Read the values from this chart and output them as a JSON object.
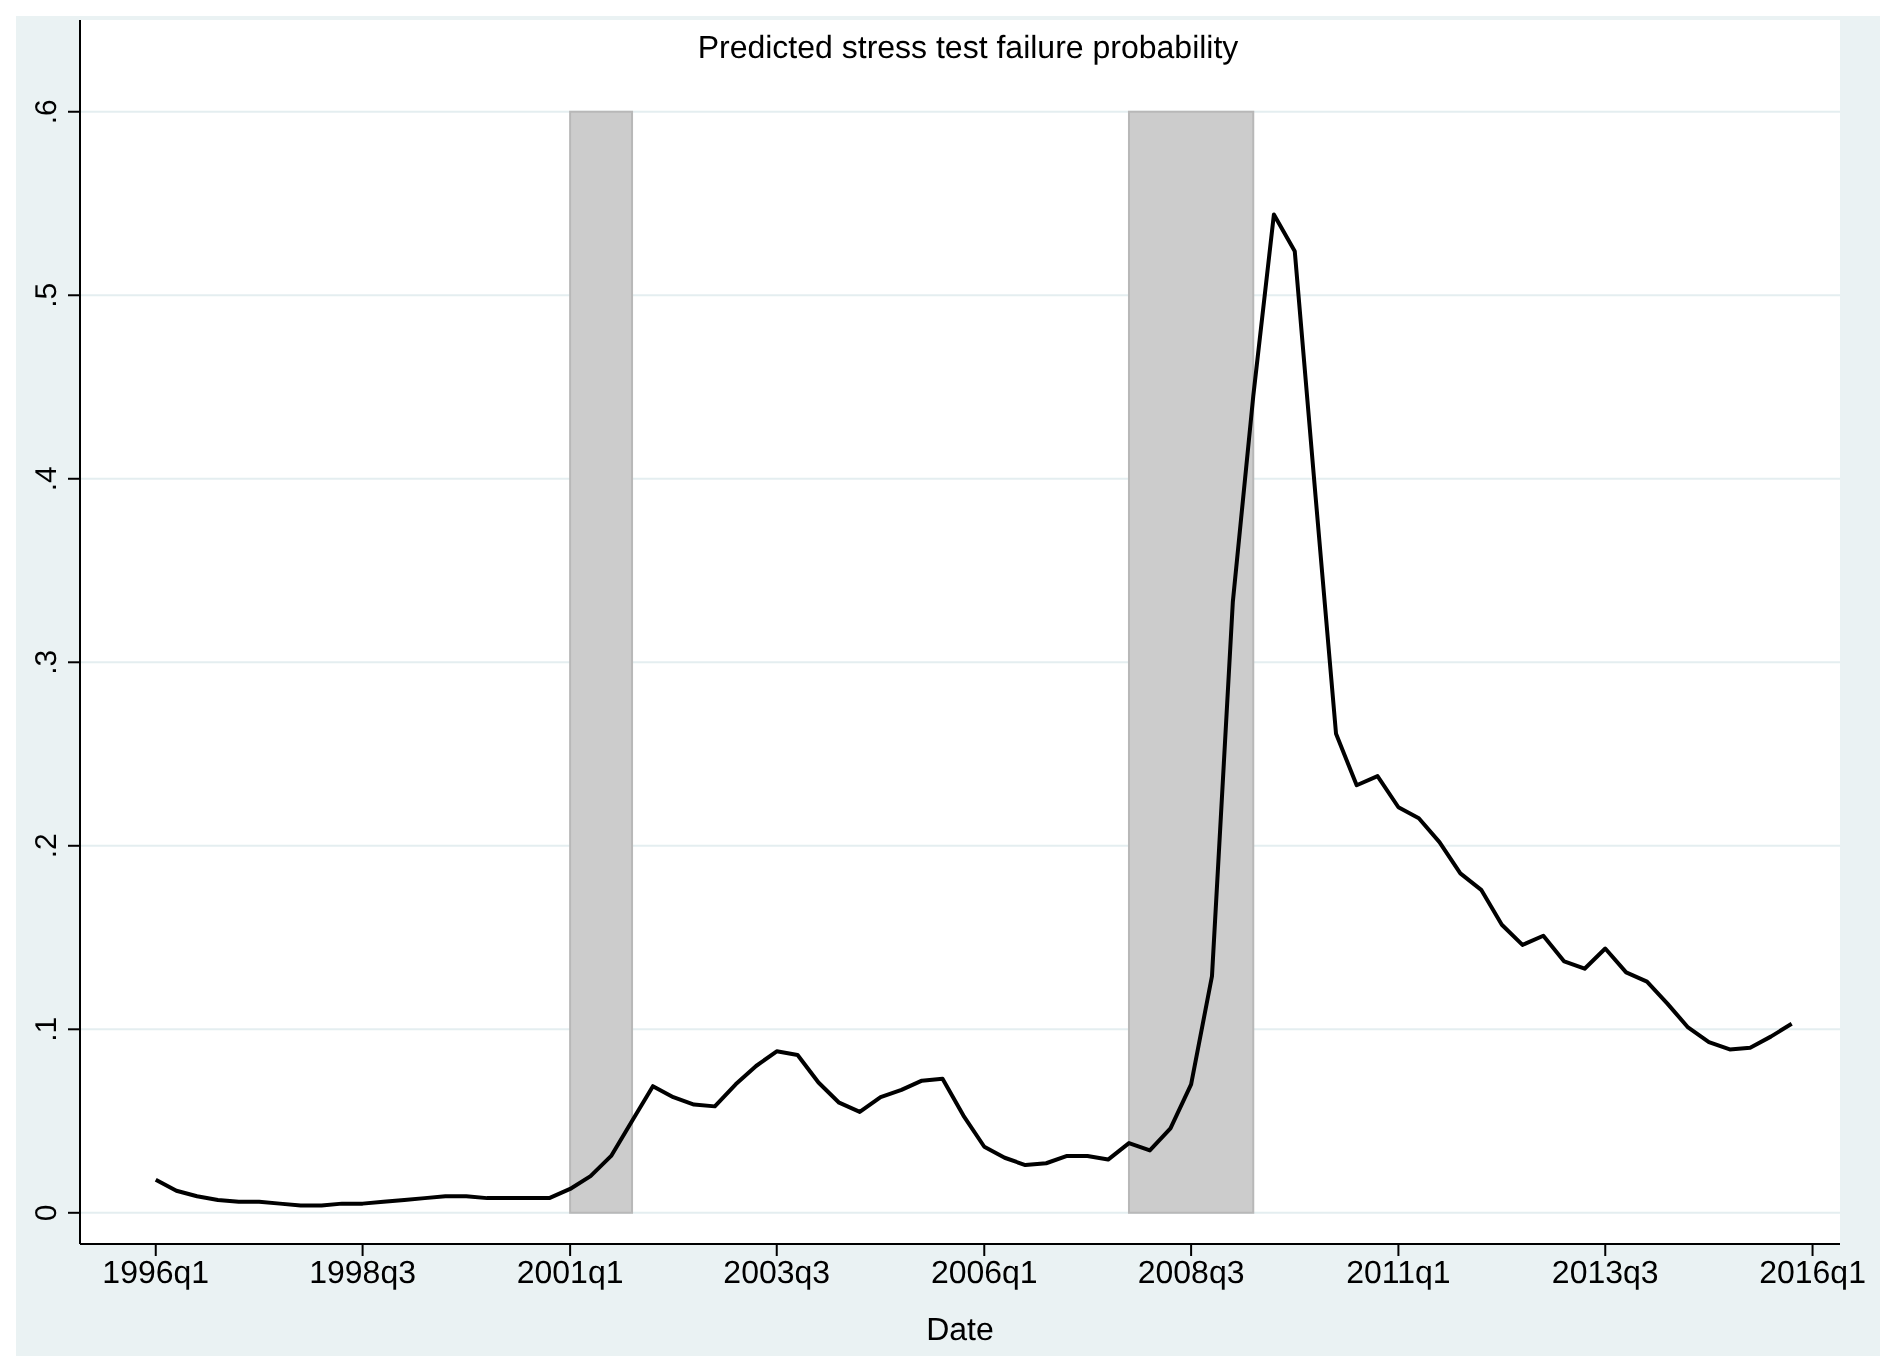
{
  "chart_data": {
    "type": "line",
    "title": "Predicted stress test failure probability",
    "xlabel": "Date",
    "x": [
      "1996-01",
      "1996-04",
      "1996-07",
      "1996-10",
      "1997-01",
      "1997-04",
      "1997-07",
      "1997-10",
      "1998-01",
      "1998-04",
      "1998-07",
      "1998-10",
      "1999-01",
      "1999-04",
      "1999-07",
      "1999-10",
      "2000-01",
      "2000-04",
      "2000-07",
      "2000-10",
      "2001-01",
      "2001-04",
      "2001-07",
      "2001-10",
      "2002-01",
      "2002-04",
      "2002-07",
      "2002-10",
      "2003-01",
      "2003-04",
      "2003-07",
      "2003-10",
      "2004-01",
      "2004-04",
      "2004-07",
      "2004-10",
      "2005-01",
      "2005-04",
      "2005-07",
      "2005-10",
      "2006-01",
      "2006-04",
      "2006-07",
      "2006-10",
      "2007-01",
      "2007-04",
      "2007-07",
      "2007-10",
      "2008-01",
      "2008-04",
      "2008-07",
      "2008-10",
      "2009-01",
      "2009-04",
      "2009-07",
      "2009-10",
      "2010-01",
      "2010-04",
      "2010-07",
      "2010-10",
      "2011-01",
      "2011-04",
      "2011-07",
      "2011-10",
      "2012-01",
      "2012-04",
      "2012-07",
      "2012-10",
      "2013-01",
      "2013-04",
      "2013-07",
      "2013-10",
      "2014-01",
      "2014-04",
      "2014-07",
      "2014-10",
      "2015-01",
      "2015-04",
      "2015-07",
      "2015-10"
    ],
    "series": [
      {
        "color": "#000000",
        "values": [
          0.018,
          0.012,
          0.009,
          0.007,
          0.006,
          0.006,
          0.005,
          0.004,
          0.004,
          0.005,
          0.005,
          0.006,
          0.007,
          0.008,
          0.009,
          0.009,
          0.008,
          0.008,
          0.008,
          0.008,
          0.013,
          0.02,
          0.031,
          0.05,
          0.069,
          0.063,
          0.059,
          0.058,
          0.07,
          0.08,
          0.088,
          0.086,
          0.071,
          0.06,
          0.055,
          0.063,
          0.067,
          0.072,
          0.073,
          0.053,
          0.036,
          0.03,
          0.026,
          0.027,
          0.031,
          0.031,
          0.029,
          0.038,
          0.034,
          0.046,
          0.07,
          0.129,
          0.333,
          0.445,
          0.544,
          0.524,
          0.39,
          0.261,
          0.233,
          0.238,
          0.221,
          0.215,
          0.202,
          0.185,
          0.176,
          0.157,
          0.146,
          0.151,
          0.137,
          0.133,
          0.144,
          0.131,
          0.126,
          0.114,
          0.101,
          0.093,
          0.089,
          0.09,
          0.096,
          0.103
        ]
      }
    ],
    "xlim": [
      "1995-02",
      "2016-05"
    ],
    "xticks": [
      {
        "value": "1996-01",
        "label": "1996q1"
      },
      {
        "value": "1998-07",
        "label": "1998q3"
      },
      {
        "value": "2001-01",
        "label": "2001q1"
      },
      {
        "value": "2003-07",
        "label": "2003q3"
      },
      {
        "value": "2006-01",
        "label": "2006q1"
      },
      {
        "value": "2008-07",
        "label": "2008q3"
      },
      {
        "value": "2011-01",
        "label": "2011q1"
      },
      {
        "value": "2013-07",
        "label": "2013q3"
      },
      {
        "value": "2016-01",
        "label": "2016q1"
      }
    ],
    "ylim": [
      -0.017,
      0.65
    ],
    "yticks": [
      0,
      {
        "value": 0.1,
        "label": ".1"
      },
      {
        "value": 0.2,
        "label": ".2"
      },
      {
        "value": 0.3,
        "label": ".3"
      },
      {
        "value": 0.4,
        "label": ".4"
      },
      {
        "value": 0.5,
        "label": ".5"
      },
      {
        "value": 0.6,
        "label": ".6"
      }
    ],
    "bands": [
      {
        "axis": "x",
        "from": "2001-01",
        "to": "2001-10",
        "color": "#cccccc"
      },
      {
        "axis": "x",
        "from": "2007-10",
        "to": "2009-04",
        "color": "#cccccc"
      }
    ],
    "grid": "y",
    "marker": "none",
    "line_style": "solid"
  }
}
